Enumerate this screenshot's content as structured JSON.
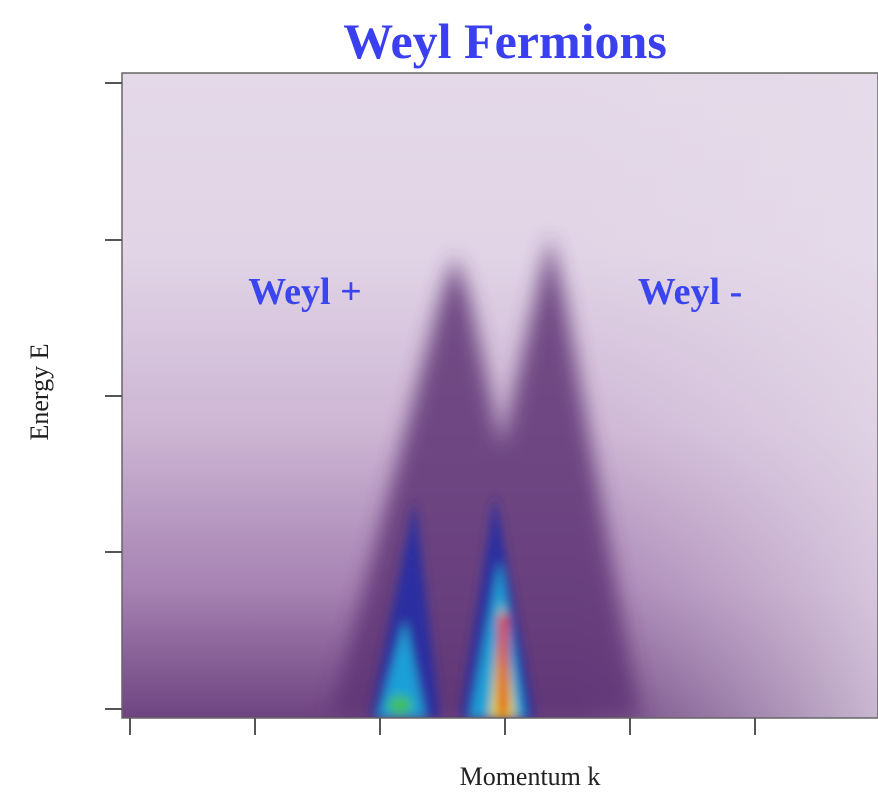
{
  "chart_data": {
    "type": "heatmap",
    "title": "Weyl Fermions",
    "xlabel": "Momentum k",
    "ylabel": "Energy E",
    "annotations": [
      "Weyl +",
      "Weyl -"
    ]
  }
}
